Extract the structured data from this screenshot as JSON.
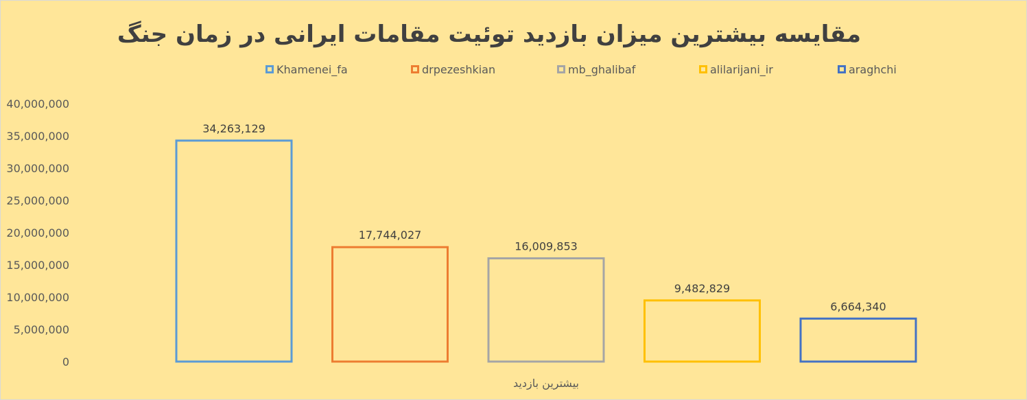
{
  "chart_data": {
    "type": "bar",
    "title": "مقایسه بیشترین میزان بازدید توئیت مقامات ایرانی در زمان جنگ",
    "categories": [
      "بیشترین بازدید"
    ],
    "xlabel": "",
    "ylabel": "",
    "ylim": [
      0,
      40000000
    ],
    "yticks": [
      0,
      5000000,
      10000000,
      15000000,
      20000000,
      25000000,
      30000000,
      35000000,
      40000000
    ],
    "ytick_labels": [
      "0",
      "5,000,000",
      "10,000,000",
      "15,000,000",
      "20,000,000",
      "25,000,000",
      "30,000,000",
      "35,000,000",
      "40,000,000"
    ],
    "grid": false,
    "legend_position": "top",
    "series": [
      {
        "name": "Khamenei_fa",
        "values": [
          34263129
        ],
        "label": "34,263,129",
        "color": "#5b9bd5"
      },
      {
        "name": "drpezeshkian",
        "values": [
          17744027
        ],
        "label": "17,744,027",
        "color": "#ed7d31"
      },
      {
        "name": "mb_ghalibaf",
        "values": [
          16009853
        ],
        "label": "16,009,853",
        "color": "#a5a5a5"
      },
      {
        "name": "alilarijani_ir",
        "values": [
          9482829
        ],
        "label": "9,482,829",
        "color": "#ffc000"
      },
      {
        "name": "araghchi",
        "values": [
          6664340
        ],
        "label": "6,664,340",
        "color": "#4472c4"
      }
    ],
    "background_color": "#ffe699",
    "bar_style": "outlined"
  }
}
